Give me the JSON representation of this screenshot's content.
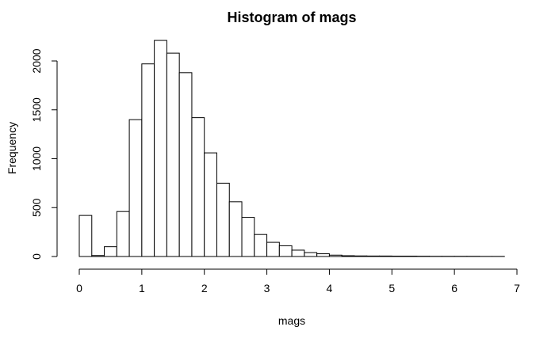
{
  "chart_data": {
    "type": "bar",
    "title": "Histogram of mags",
    "xlabel": "mags",
    "ylabel": "Frequency",
    "bin_width": 0.2,
    "bin_edges_start": 0,
    "values": [
      420,
      10,
      100,
      460,
      1400,
      1970,
      2210,
      2080,
      1880,
      1420,
      1060,
      750,
      560,
      400,
      225,
      145,
      110,
      65,
      40,
      28,
      14,
      8,
      6,
      5,
      5,
      4,
      4,
      3,
      2,
      2,
      2,
      2,
      1,
      1
    ],
    "xlim": [
      0,
      7
    ],
    "ylim": [
      0,
      2250
    ],
    "x_ticks": [
      0,
      1,
      2,
      3,
      4,
      5,
      6,
      7
    ],
    "y_ticks": [
      0,
      500,
      1000,
      1500,
      2000
    ],
    "grid": false,
    "legend": "none"
  }
}
